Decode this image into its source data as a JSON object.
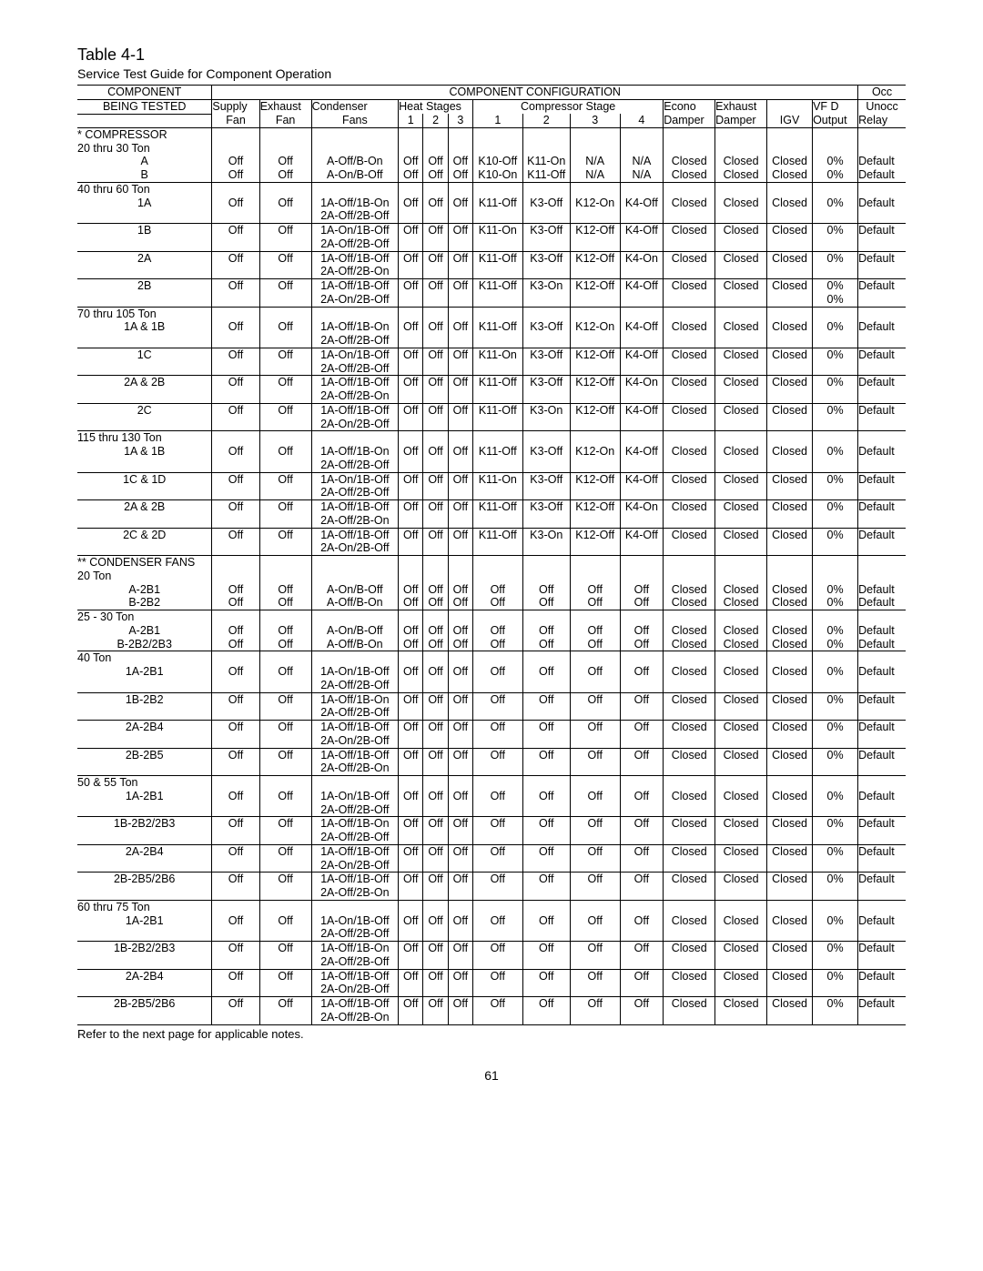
{
  "title": "Table 4-1",
  "subtitle": "Service Test Guide for Component Operation",
  "footnote": "Refer to the next page for applicable notes.",
  "page": "61",
  "hdr": {
    "comp": "COMPONENT",
    "being": "BEING TESTED",
    "config": "COMPONENT CONFIGURATION",
    "supply": "Supply",
    "fan": "Fan",
    "exhaust": "Exhaust",
    "condenser": "Condenser",
    "fans": "Fans",
    "heat": "Heat Stages",
    "one": "1",
    "two": "2",
    "three": "3",
    "four": "4",
    "compstage": "Compressor Stage",
    "econ": "Econo",
    "damper": "Damper",
    "exhd": "Exhaust",
    "igv": "IGV",
    "vfd": "VF   D",
    "output": "Output",
    "occ": "Occ",
    "unocc": "Unocc",
    "relay": "Relay"
  },
  "groups": [
    {
      "label": "* COMPRESSOR",
      "rows": []
    },
    {
      "label": "20 thru 30 Ton",
      "rows": [
        {
          "c": "A",
          "s": "Off",
          "e": "Off",
          "cf": [
            "A-Off/B-On"
          ],
          "h1": "Off",
          "h2": "Off",
          "h3": "Off",
          "cs1": "K10-Off",
          "cs2": "K11-On",
          "cs3": "N/A",
          "cs4": "N/A",
          "ed": "Closed",
          "xd": "Closed",
          "igv": "Closed",
          "vfd": "0%",
          "occ": "Default",
          "bb": false
        },
        {
          "c": "B",
          "s": "Off",
          "e": "Off",
          "cf": [
            "A-On/B-Off"
          ],
          "h1": "Off",
          "h2": "Off",
          "h3": "Off",
          "cs1": "K10-On",
          "cs2": "K11-Off",
          "cs3": "N/A",
          "cs4": "N/A",
          "ed": "Closed",
          "xd": "Closed",
          "igv": "Closed",
          "vfd": "0%",
          "occ": "Default",
          "bb": true
        }
      ]
    },
    {
      "label": "40 thru 60 Ton",
      "rows": [
        {
          "c": "1A",
          "s": "Off",
          "e": "Off",
          "cf": [
            "1A-Off/1B-On",
            "2A-Off/2B-Off"
          ],
          "h1": "Off",
          "h2": "Off",
          "h3": "Off",
          "cs1": "K11-Off",
          "cs2": "K3-Off",
          "cs3": "K12-On",
          "cs4": "K4-Off",
          "ed": "Closed",
          "xd": "Closed",
          "igv": "Closed",
          "vfd": "0%",
          "occ": "Default",
          "bb": true
        },
        {
          "c": "1B",
          "s": "Off",
          "e": "Off",
          "cf": [
            "1A-On/1B-Off",
            "2A-Off/2B-Off"
          ],
          "h1": "Off",
          "h2": "Off",
          "h3": "Off",
          "cs1": "K11-On",
          "cs2": "K3-Off",
          "cs3": "K12-Off",
          "cs4": "K4-Off",
          "ed": "Closed",
          "xd": "Closed",
          "igv": "Closed",
          "vfd": "0%",
          "occ": "Default",
          "bb": true
        },
        {
          "c": "2A",
          "s": "Off",
          "e": "Off",
          "cf": [
            "1A-Off/1B-Off",
            "2A-Off/2B-On"
          ],
          "h1": "Off",
          "h2": "Off",
          "h3": "Off",
          "cs1": "K11-Off",
          "cs2": "K3-Off",
          "cs3": "K12-Off",
          "cs4": "K4-On",
          "ed": "Closed",
          "xd": "Closed",
          "igv": "Closed",
          "vfd": "0%",
          "occ": "Default",
          "bb": true
        },
        {
          "c": "2B",
          "s": "Off",
          "e": "Off",
          "cf": [
            "1A-Off/1B-Off",
            "2A-On/2B-Off"
          ],
          "h1": "Off",
          "h2": "Off",
          "h3": "Off",
          "cs1": "K11-Off",
          "cs2": "K3-On",
          "cs3": "K12-Off",
          "cs4": "K4-Off",
          "ed": "Closed",
          "xd": "Closed",
          "igv": "Closed",
          "vfd": "0%\n0%",
          "occ": "Default",
          "bb": true
        }
      ]
    },
    {
      "label": "70 thru 105 Ton",
      "rows": [
        {
          "c": "1A & 1B",
          "s": "Off",
          "e": "Off",
          "cf": [
            "1A-Off/1B-On",
            "2A-Off/2B-Off"
          ],
          "h1": "Off",
          "h2": "Off",
          "h3": "Off",
          "cs1": "K11-Off",
          "cs2": "K3-Off",
          "cs3": "K12-On",
          "cs4": "K4-Off",
          "ed": "Closed",
          "xd": "Closed",
          "igv": "Closed",
          "vfd": "0%",
          "occ": "Default",
          "bb": true
        },
        {
          "c": "1C",
          "s": "Off",
          "e": "Off",
          "cf": [
            "1A-On/1B-Off",
            "2A-Off/2B-Off"
          ],
          "h1": "Off",
          "h2": "Off",
          "h3": "Off",
          "cs1": "K11-On",
          "cs2": "K3-Off",
          "cs3": "K12-Off",
          "cs4": "K4-Off",
          "ed": "Closed",
          "xd": "Closed",
          "igv": "Closed",
          "vfd": "0%",
          "occ": "Default",
          "bb": true
        },
        {
          "c": "2A & 2B",
          "s": "Off",
          "e": "Off",
          "cf": [
            "1A-Off/1B-Off",
            "2A-Off/2B-On"
          ],
          "h1": "Off",
          "h2": "Off",
          "h3": "Off",
          "cs1": "K11-Off",
          "cs2": "K3-Off",
          "cs3": "K12-Off",
          "cs4": "K4-On",
          "ed": "Closed",
          "xd": "Closed",
          "igv": "Closed",
          "vfd": "0%",
          "occ": "Default",
          "bb": true
        },
        {
          "c": "2C",
          "s": "Off",
          "e": "Off",
          "cf": [
            "1A-Off/1B-Off",
            "2A-On/2B-Off"
          ],
          "h1": "Off",
          "h2": "Off",
          "h3": "Off",
          "cs1": "K11-Off",
          "cs2": "K3-On",
          "cs3": "K12-Off",
          "cs4": "K4-Off",
          "ed": "Closed",
          "xd": "Closed",
          "igv": "Closed",
          "vfd": "0%",
          "occ": "Default",
          "bb": true
        }
      ]
    },
    {
      "label": "115 thru 130 Ton",
      "rows": [
        {
          "c": "1A & 1B",
          "s": "Off",
          "e": "Off",
          "cf": [
            "1A-Off/1B-On",
            "2A-Off/2B-Off"
          ],
          "h1": "Off",
          "h2": "Off",
          "h3": "Off",
          "cs1": "K11-Off",
          "cs2": "K3-Off",
          "cs3": "K12-On",
          "cs4": "K4-Off",
          "ed": "Closed",
          "xd": "Closed",
          "igv": "Closed",
          "vfd": "0%",
          "occ": "Default",
          "bb": true
        },
        {
          "c": "1C & 1D",
          "s": "Off",
          "e": "Off",
          "cf": [
            "1A-On/1B-Off",
            "2A-Off/2B-Off"
          ],
          "h1": "Off",
          "h2": "Off",
          "h3": "Off",
          "cs1": "K11-On",
          "cs2": "K3-Off",
          "cs3": "K12-Off",
          "cs4": "K4-Off",
          "ed": "Closed",
          "xd": "Closed",
          "igv": "Closed",
          "vfd": "0%",
          "occ": "Default",
          "bb": true
        },
        {
          "c": "2A & 2B",
          "s": "Off",
          "e": "Off",
          "cf": [
            "1A-Off/1B-Off",
            "2A-Off/2B-On"
          ],
          "h1": "Off",
          "h2": "Off",
          "h3": "Off",
          "cs1": "K11-Off",
          "cs2": "K3-Off",
          "cs3": "K12-Off",
          "cs4": "K4-On",
          "ed": "Closed",
          "xd": "Closed",
          "igv": "Closed",
          "vfd": "0%",
          "occ": "Default",
          "bb": true
        },
        {
          "c": "2C & 2D",
          "s": "Off",
          "e": "Off",
          "cf": [
            "1A-Off/1B-Off",
            "2A-On/2B-Off"
          ],
          "h1": "Off",
          "h2": "Off",
          "h3": "Off",
          "cs1": "K11-Off",
          "cs2": "K3-On",
          "cs3": "K12-Off",
          "cs4": "K4-Off",
          "ed": "Closed",
          "xd": "Closed",
          "igv": "Closed",
          "vfd": "0%",
          "occ": "Default",
          "bb": true
        }
      ]
    },
    {
      "label": "** CONDENSER FANS",
      "rows": []
    },
    {
      "label": "20 Ton",
      "rows": [
        {
          "c": "A-2B1",
          "s": "Off",
          "e": "Off",
          "cf": [
            "A-On/B-Off"
          ],
          "h1": "Off",
          "h2": "Off",
          "h3": "Off",
          "cs1": "Off",
          "cs2": "Off",
          "cs3": "Off",
          "cs4": "Off",
          "ed": "Closed",
          "xd": "Closed",
          "igv": "Closed",
          "vfd": "0%",
          "occ": "Default",
          "bb": false
        },
        {
          "c": "B-2B2",
          "s": "Off",
          "e": "Off",
          "cf": [
            "A-Off/B-On"
          ],
          "h1": "Off",
          "h2": "Off",
          "h3": "Off",
          "cs1": "Off",
          "cs2": "Off",
          "cs3": "Off",
          "cs4": "Off",
          "ed": "Closed",
          "xd": "Closed",
          "igv": "Closed",
          "vfd": "0%",
          "occ": "Default",
          "bb": true
        }
      ]
    },
    {
      "label": "25 - 30 Ton",
      "rows": [
        {
          "c": "A-2B1",
          "s": "Off",
          "e": "Off",
          "cf": [
            "A-On/B-Off"
          ],
          "h1": "Off",
          "h2": "Off",
          "h3": "Off",
          "cs1": "Off",
          "cs2": "Off",
          "cs3": "Off",
          "cs4": "Off",
          "ed": "Closed",
          "xd": "Closed",
          "igv": "Closed",
          "vfd": "0%",
          "occ": "Default",
          "bb": false
        },
        {
          "c": "B-2B2/2B3",
          "s": "Off",
          "e": "Off",
          "cf": [
            "A-Off/B-On"
          ],
          "h1": "Off",
          "h2": "Off",
          "h3": "Off",
          "cs1": "Off",
          "cs2": "Off",
          "cs3": "Off",
          "cs4": "Off",
          "ed": "Closed",
          "xd": "Closed",
          "igv": "Closed",
          "vfd": "0%",
          "occ": "Default",
          "bb": true
        }
      ]
    },
    {
      "label": "40 Ton",
      "rows": [
        {
          "c": "1A-2B1",
          "s": "Off",
          "e": "Off",
          "cf": [
            "1A-On/1B-Off",
            "2A-Off/2B-Off"
          ],
          "h1": "Off",
          "h2": "Off",
          "h3": "Off",
          "cs1": "Off",
          "cs2": "Off",
          "cs3": "Off",
          "cs4": "Off",
          "ed": "Closed",
          "xd": "Closed",
          "igv": "Closed",
          "vfd": "0%",
          "occ": "Default",
          "bb": true
        },
        {
          "c": "1B-2B2",
          "s": "Off",
          "e": "Off",
          "cf": [
            "1A-Off/1B-On",
            "2A-Off/2B-Off"
          ],
          "h1": "Off",
          "h2": "Off",
          "h3": "Off",
          "cs1": "Off",
          "cs2": "Off",
          "cs3": "Off",
          "cs4": "Off",
          "ed": "Closed",
          "xd": "Closed",
          "igv": "Closed",
          "vfd": "0%",
          "occ": "Default",
          "bb": true
        },
        {
          "c": "2A-2B4",
          "s": "Off",
          "e": "Off",
          "cf": [
            "1A-Off/1B-Off",
            "2A-On/2B-Off"
          ],
          "h1": "Off",
          "h2": "Off",
          "h3": "Off",
          "cs1": "Off",
          "cs2": "Off",
          "cs3": "Off",
          "cs4": "Off",
          "ed": "Closed",
          "xd": "Closed",
          "igv": "Closed",
          "vfd": "0%",
          "occ": "Default",
          "bb": true
        },
        {
          "c": "2B-2B5",
          "s": "Off",
          "e": "Off",
          "cf": [
            "1A-Off/1B-Off",
            "2A-Off/2B-On"
          ],
          "h1": "Off",
          "h2": "Off",
          "h3": "Off",
          "cs1": "Off",
          "cs2": "Off",
          "cs3": "Off",
          "cs4": "Off",
          "ed": "Closed",
          "xd": "Closed",
          "igv": "Closed",
          "vfd": "0%",
          "occ": "Default",
          "bb": true
        }
      ]
    },
    {
      "label": "50 & 55 Ton",
      "rows": [
        {
          "c": "1A-2B1",
          "s": "Off",
          "e": "Off",
          "cf": [
            "1A-On/1B-Off",
            "2A-Off/2B-Off"
          ],
          "h1": "Off",
          "h2": "Off",
          "h3": "Off",
          "cs1": "Off",
          "cs2": "Off",
          "cs3": "Off",
          "cs4": "Off",
          "ed": "Closed",
          "xd": "Closed",
          "igv": "Closed",
          "vfd": "0%",
          "occ": "Default",
          "bb": true
        },
        {
          "c": "1B-2B2/2B3",
          "s": "Off",
          "e": "Off",
          "cf": [
            "1A-Off/1B-On",
            "2A-Off/2B-Off"
          ],
          "h1": "Off",
          "h2": "Off",
          "h3": "Off",
          "cs1": "Off",
          "cs2": "Off",
          "cs3": "Off",
          "cs4": "Off",
          "ed": "Closed",
          "xd": "Closed",
          "igv": "Closed",
          "vfd": "0%",
          "occ": "Default",
          "bb": true
        },
        {
          "c": "2A-2B4",
          "s": "Off",
          "e": "Off",
          "cf": [
            "1A-Off/1B-Off",
            "2A-On/2B-Off"
          ],
          "h1": "Off",
          "h2": "Off",
          "h3": "Off",
          "cs1": "Off",
          "cs2": "Off",
          "cs3": "Off",
          "cs4": "Off",
          "ed": "Closed",
          "xd": "Closed",
          "igv": "Closed",
          "vfd": "0%",
          "occ": "Default",
          "bb": true
        },
        {
          "c": "2B-2B5/2B6",
          "s": "Off",
          "e": "Off",
          "cf": [
            "1A-Off/1B-Off",
            "2A-Off/2B-On"
          ],
          "h1": "Off",
          "h2": "Off",
          "h3": "Off",
          "cs1": "Off",
          "cs2": "Off",
          "cs3": "Off",
          "cs4": "Off",
          "ed": "Closed",
          "xd": "Closed",
          "igv": "Closed",
          "vfd": "0%",
          "occ": "Default",
          "bb": true
        }
      ]
    },
    {
      "label": "60 thru 75 Ton",
      "rows": [
        {
          "c": "1A-2B1",
          "s": "Off",
          "e": "Off",
          "cf": [
            "1A-On/1B-Off",
            "2A-Off/2B-Off"
          ],
          "h1": "Off",
          "h2": "Off",
          "h3": "Off",
          "cs1": "Off",
          "cs2": "Off",
          "cs3": "Off",
          "cs4": "Off",
          "ed": "Closed",
          "xd": "Closed",
          "igv": "Closed",
          "vfd": "0%",
          "occ": "Default",
          "bb": true
        },
        {
          "c": "1B-2B2/2B3",
          "s": "Off",
          "e": "Off",
          "cf": [
            "1A-Off/1B-On",
            "2A-Off/2B-Off"
          ],
          "h1": "Off",
          "h2": "Off",
          "h3": "Off",
          "cs1": "Off",
          "cs2": "Off",
          "cs3": "Off",
          "cs4": "Off",
          "ed": "Closed",
          "xd": "Closed",
          "igv": "Closed",
          "vfd": "0%",
          "occ": "Default",
          "bb": true
        },
        {
          "c": "2A-2B4",
          "s": "Off",
          "e": "Off",
          "cf": [
            "1A-Off/1B-Off",
            "2A-On/2B-Off"
          ],
          "h1": "Off",
          "h2": "Off",
          "h3": "Off",
          "cs1": "Off",
          "cs2": "Off",
          "cs3": "Off",
          "cs4": "Off",
          "ed": "Closed",
          "xd": "Closed",
          "igv": "Closed",
          "vfd": "0%",
          "occ": "Default",
          "bb": true
        },
        {
          "c": "2B-2B5/2B6",
          "s": "Off",
          "e": "Off",
          "cf": [
            "1A-Off/1B-Off",
            "2A-Off/2B-On"
          ],
          "h1": "Off",
          "h2": "Off",
          "h3": "Off",
          "cs1": "Off",
          "cs2": "Off",
          "cs3": "Off",
          "cs4": "Off",
          "ed": "Closed",
          "xd": "Closed",
          "igv": "Closed",
          "vfd": "0%",
          "occ": "Default",
          "bb": true
        }
      ]
    }
  ]
}
